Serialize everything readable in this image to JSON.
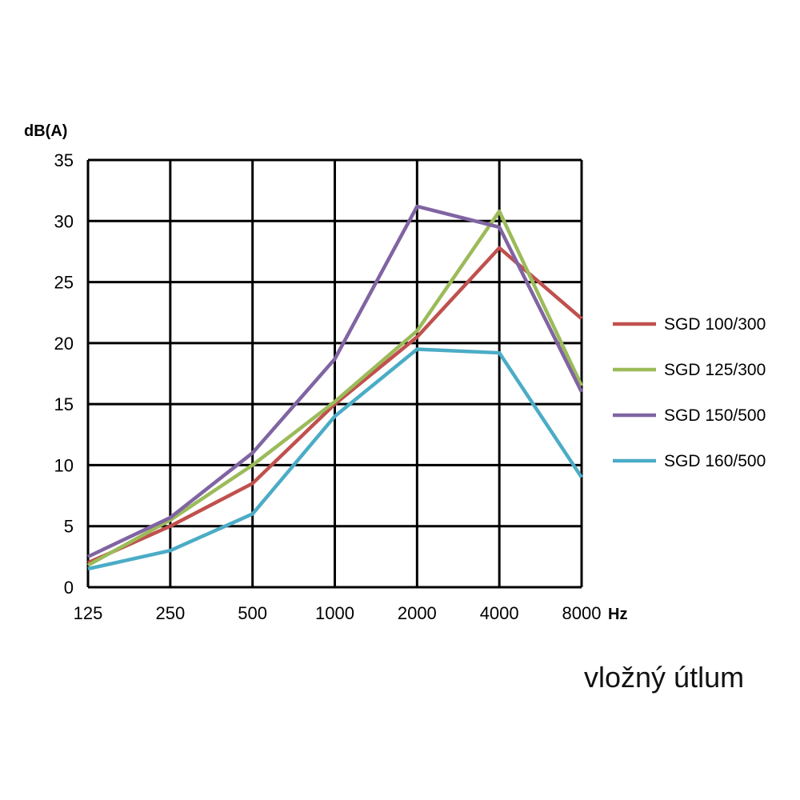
{
  "chart_data": {
    "type": "line",
    "ylabel": "dB(A)",
    "xlabel": "Hz",
    "caption": "vložný útlum",
    "categories": [
      "125",
      "250",
      "500",
      "1000",
      "2000",
      "4000",
      "8000"
    ],
    "ylim": [
      0,
      35
    ],
    "yticks": [
      0,
      5,
      10,
      15,
      20,
      25,
      30,
      35
    ],
    "grid": true,
    "legend_position": "right",
    "series": [
      {
        "name": "SGD 100/300",
        "color": "#c0504d",
        "values": [
          2.0,
          5.0,
          8.5,
          15.0,
          20.5,
          27.8,
          22.0
        ]
      },
      {
        "name": "SGD 125/300",
        "color": "#9bbb59",
        "values": [
          1.8,
          5.5,
          10.0,
          15.2,
          21.0,
          30.8,
          16.5
        ]
      },
      {
        "name": "SGD 150/500",
        "color": "#8064a2",
        "values": [
          2.5,
          5.7,
          11.0,
          18.7,
          31.2,
          29.5,
          16.0
        ]
      },
      {
        "name": "SGD 160/500",
        "color": "#4bacc6",
        "values": [
          1.5,
          3.0,
          6.0,
          14.0,
          19.5,
          19.2,
          9.0
        ]
      }
    ]
  }
}
